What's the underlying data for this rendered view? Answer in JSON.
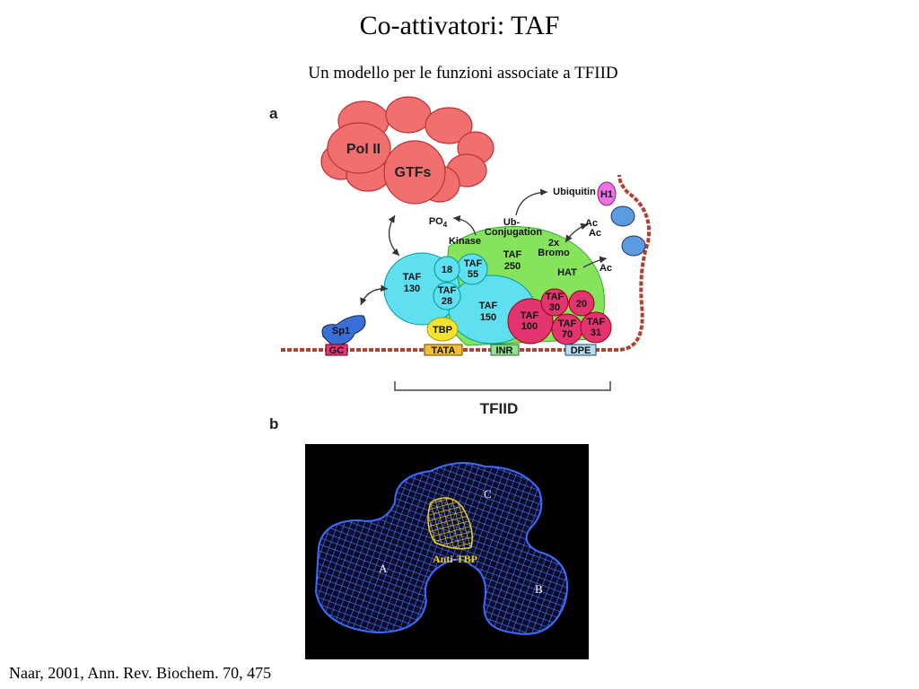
{
  "header": {
    "title": "Co-attivatori: TAF",
    "subtitle": "Un modello per le funzioni associate a TFIID"
  },
  "panel_a": {
    "label": "a",
    "pol2": "Pol II",
    "gtfs": "GTFs",
    "po4": [
      "PO",
      "4"
    ],
    "kinase": "Kinase",
    "ub_conj": [
      "Ub-",
      "Conjugation"
    ],
    "ubiquitin": "Ubiquitin",
    "h1": "H1",
    "ac": [
      "Ac",
      "Ac",
      "Ac"
    ],
    "bromo": [
      "2x",
      "Bromo"
    ],
    "hat": "HAT",
    "taf250": [
      "TAF",
      "250"
    ],
    "taf130": [
      "TAF",
      "130"
    ],
    "taf18": "18",
    "taf55": [
      "TAF",
      "55"
    ],
    "taf28": [
      "TAF",
      "28"
    ],
    "taf150": [
      "TAF",
      "150"
    ],
    "taf30": [
      "TAF",
      "30"
    ],
    "taf20": "20",
    "taf100": [
      "TAF",
      "100"
    ],
    "taf70": [
      "TAF",
      "70"
    ],
    "taf31": [
      "TAF",
      "31"
    ],
    "tbp": "TBP",
    "sp1": "Sp1",
    "gc": "GC",
    "tata": "TATA",
    "inr": "INR",
    "dpe": "DPE",
    "tfiid": "TFIID"
  },
  "panel_b": {
    "label": "b",
    "anti_tbp": "Anti-TBP",
    "a": "A",
    "b": "B",
    "c": "C"
  },
  "citation": "Naar, 2001, Ann. Rev. Biochem. 70, 475"
}
